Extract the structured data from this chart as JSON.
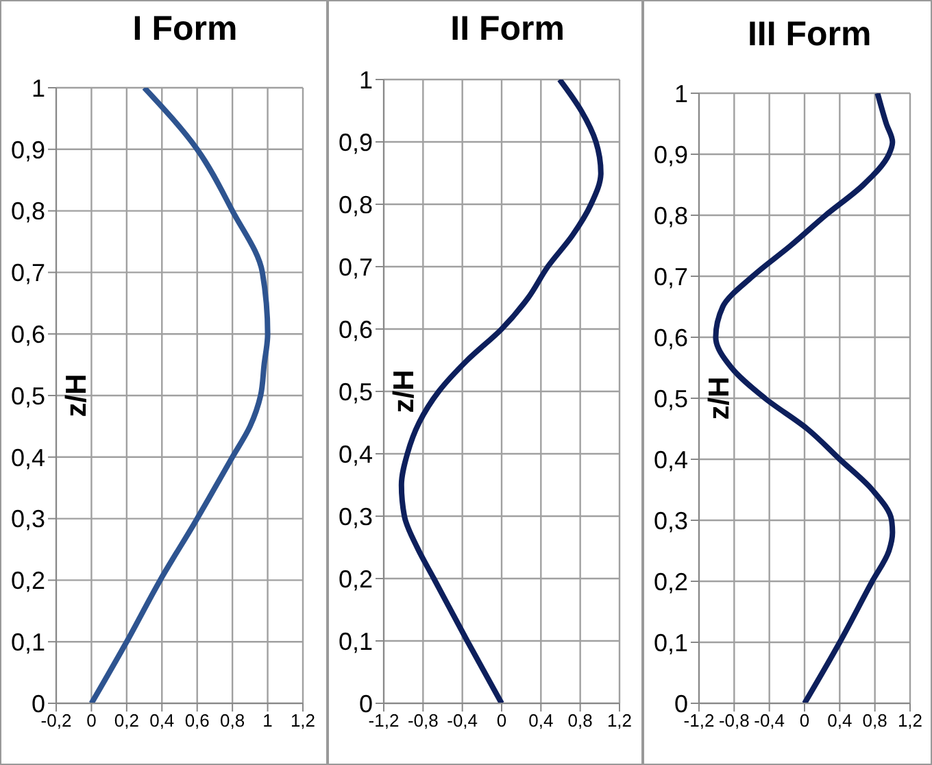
{
  "chart_data": [
    {
      "type": "line",
      "title": "I Form",
      "ylabel": "z/H",
      "grid": true,
      "series": [
        {
          "color": "#2e5490",
          "x": [
            0,
            0.2,
            0.39,
            0.6,
            0.7,
            0.8,
            0.9,
            0.96,
            0.98,
            1.0,
            0.97,
            0.8,
            0.6,
            0.3
          ],
          "values": [
            0,
            0.1,
            0.2,
            0.3,
            0.35,
            0.4,
            0.45,
            0.5,
            0.55,
            0.6,
            0.7,
            0.8,
            0.9,
            1
          ]
        }
      ],
      "xlim": [
        -0.2,
        1.2
      ],
      "xticks": [
        {
          "value": -0.2,
          "label": "-0,2"
        },
        {
          "value": 0,
          "label": "0"
        },
        {
          "value": 0.2,
          "label": "0,2"
        },
        {
          "value": 0.4,
          "label": "0,4"
        },
        {
          "value": 0.6,
          "label": "0,6"
        },
        {
          "value": 0.8,
          "label": "0,8"
        },
        {
          "value": 1,
          "label": "1"
        },
        {
          "value": 1.2,
          "label": "1,2"
        }
      ],
      "ylim": [
        0,
        1
      ],
      "yticks": [
        {
          "value": 0,
          "label": "0"
        },
        {
          "value": 0.1,
          "label": "0,1"
        },
        {
          "value": 0.2,
          "label": "0,2"
        },
        {
          "value": 0.3,
          "label": "0,3"
        },
        {
          "value": 0.4,
          "label": "0,4"
        },
        {
          "value": 0.5,
          "label": "0,5"
        },
        {
          "value": 0.6,
          "label": "0,6"
        },
        {
          "value": 0.7,
          "label": "0,7"
        },
        {
          "value": 0.8,
          "label": "0,8"
        },
        {
          "value": 0.9,
          "label": "0,9"
        },
        {
          "value": 1,
          "label": "1"
        }
      ]
    },
    {
      "type": "line",
      "title": "II Form",
      "ylabel": "z/H",
      "grid": true,
      "series": [
        {
          "color": "#0d1f5c",
          "x": [
            0,
            -0.35,
            -0.69,
            -0.86,
            -0.99,
            -1.02,
            -0.96,
            -0.84,
            -0.64,
            -0.35,
            0,
            0.27,
            0.47,
            0.72,
            0.91,
            1.01,
            0.96,
            0.81,
            0.59
          ],
          "values": [
            0,
            0.1,
            0.2,
            0.25,
            0.3,
            0.35,
            0.4,
            0.45,
            0.5,
            0.55,
            0.6,
            0.65,
            0.7,
            0.75,
            0.8,
            0.85,
            0.9,
            0.95,
            1
          ]
        }
      ],
      "xlim": [
        -1.2,
        1.2
      ],
      "xticks": [
        {
          "value": -1.2,
          "label": "-1,2"
        },
        {
          "value": -0.8,
          "label": "-0,8"
        },
        {
          "value": -0.4,
          "label": "-0,4"
        },
        {
          "value": 0,
          "label": "0"
        },
        {
          "value": 0.4,
          "label": "0,4"
        },
        {
          "value": 0.8,
          "label": "0,8"
        },
        {
          "value": 1.2,
          "label": "1,2"
        }
      ],
      "ylim": [
        0,
        1
      ],
      "yticks": [
        {
          "value": 0,
          "label": "0"
        },
        {
          "value": 0.1,
          "label": "0,1"
        },
        {
          "value": 0.2,
          "label": "0,2"
        },
        {
          "value": 0.3,
          "label": "0,3"
        },
        {
          "value": 0.4,
          "label": "0,4"
        },
        {
          "value": 0.5,
          "label": "0,5"
        },
        {
          "value": 0.6,
          "label": "0,6"
        },
        {
          "value": 0.7,
          "label": "0,7"
        },
        {
          "value": 0.8,
          "label": "0,8"
        },
        {
          "value": 0.9,
          "label": "0,9"
        },
        {
          "value": 1,
          "label": "1"
        }
      ]
    },
    {
      "type": "line",
      "title": "III Form",
      "ylabel": "z/H",
      "grid": true,
      "series": [
        {
          "color": "#0d1f5c",
          "x": [
            0,
            0.4,
            0.77,
            0.96,
            1.0,
            0.99,
            0.77,
            0.4,
            0.03,
            -0.45,
            -0.83,
            -1.01,
            -0.93,
            -0.59,
            -0.16,
            0.24,
            0.67,
            0.96,
            1.0,
            0.93,
            0.83
          ],
          "values": [
            0,
            0.1,
            0.2,
            0.25,
            0.28,
            0.3,
            0.35,
            0.4,
            0.45,
            0.5,
            0.55,
            0.6,
            0.65,
            0.7,
            0.75,
            0.8,
            0.85,
            0.9,
            0.92,
            0.95,
            1
          ]
        }
      ],
      "xlim": [
        -1.2,
        1.2
      ],
      "xticks": [
        {
          "value": -1.2,
          "label": "-1,2"
        },
        {
          "value": -0.8,
          "label": "-0,8"
        },
        {
          "value": -0.4,
          "label": "-0,4"
        },
        {
          "value": 0,
          "label": "0"
        },
        {
          "value": 0.4,
          "label": "0,4"
        },
        {
          "value": 0.8,
          "label": "0,8"
        },
        {
          "value": 1.2,
          "label": "1,2"
        }
      ],
      "ylim": [
        0,
        1
      ],
      "yticks": [
        {
          "value": 0,
          "label": "0"
        },
        {
          "value": 0.1,
          "label": "0,1"
        },
        {
          "value": 0.2,
          "label": "0,2"
        },
        {
          "value": 0.3,
          "label": "0,3"
        },
        {
          "value": 0.4,
          "label": "0,4"
        },
        {
          "value": 0.5,
          "label": "0,5"
        },
        {
          "value": 0.6,
          "label": "0,6"
        },
        {
          "value": 0.7,
          "label": "0,7"
        },
        {
          "value": 0.8,
          "label": "0,8"
        },
        {
          "value": 0.9,
          "label": "0,9"
        },
        {
          "value": 1,
          "label": "1"
        }
      ]
    }
  ]
}
